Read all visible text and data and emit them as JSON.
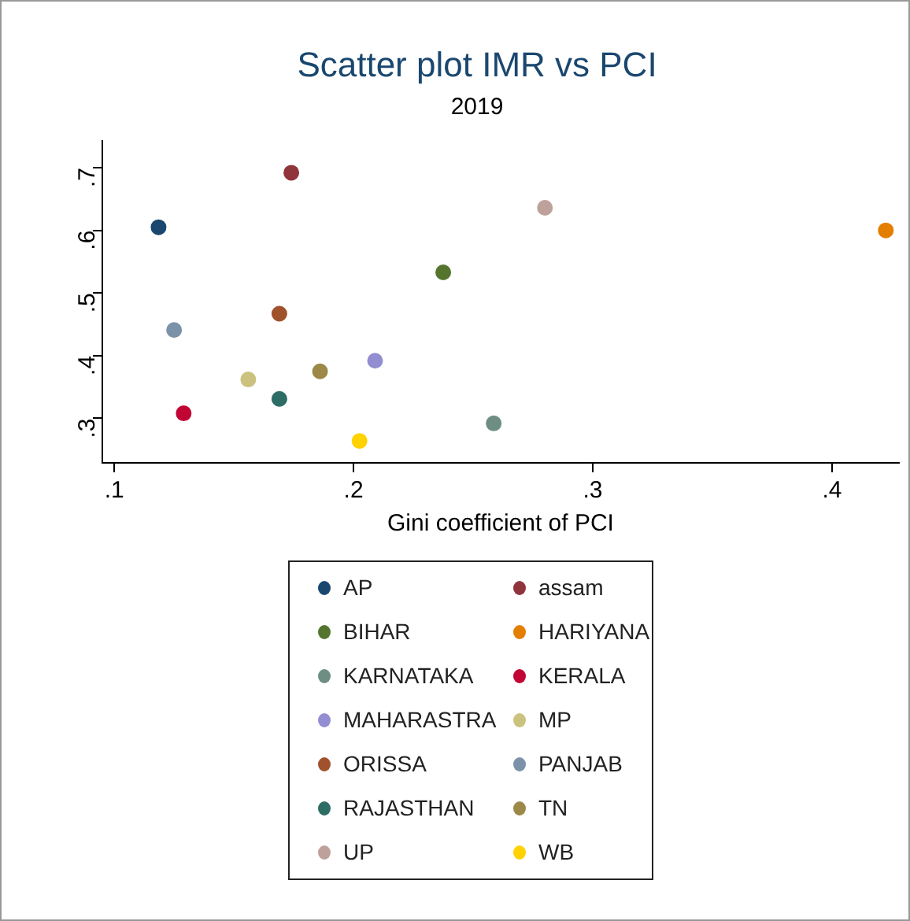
{
  "chart_data": {
    "type": "scatter",
    "title": "Scatter plot IMR vs PCI",
    "subtitle": "2019",
    "xlabel": "Gini coefficient of PCI",
    "xlim": [
      0.095,
      0.428
    ],
    "ylim": [
      0.229,
      0.743
    ],
    "xticks": [
      {
        "value": 0.1,
        "label": ".1"
      },
      {
        "value": 0.2,
        "label": ".2"
      },
      {
        "value": 0.3,
        "label": ".3"
      },
      {
        "value": 0.4,
        "label": ".4"
      }
    ],
    "yticks": [
      {
        "value": 0.3,
        "label": ".3"
      },
      {
        "value": 0.4,
        "label": ".4"
      },
      {
        "value": 0.5,
        "label": ".5"
      },
      {
        "value": 0.6,
        "label": ".6"
      },
      {
        "value": 0.7,
        "label": ".7"
      }
    ],
    "grid": false,
    "legend": "bottom",
    "marker": "circle",
    "series": [
      {
        "name": "AP",
        "color": "#1a476f",
        "x": [
          0.1185
        ],
        "values": [
          0.605
        ]
      },
      {
        "name": "assam",
        "color": "#90353b",
        "x": [
          0.174
        ],
        "values": [
          0.692
        ]
      },
      {
        "name": "BIHAR",
        "color": "#55752f",
        "x": [
          0.2375
        ],
        "values": [
          0.533
        ]
      },
      {
        "name": "HARIYANA",
        "color": "#e37e00",
        "x": [
          0.4225
        ],
        "values": [
          0.6
        ]
      },
      {
        "name": "KARNATAKA",
        "color": "#6e8e84",
        "x": [
          0.2586
        ],
        "values": [
          0.292
        ]
      },
      {
        "name": "KERALA",
        "color": "#c10534",
        "x": [
          0.129
        ],
        "values": [
          0.308
        ]
      },
      {
        "name": "MAHARASTRA",
        "color": "#938dd2",
        "x": [
          0.209
        ],
        "values": [
          0.392
        ]
      },
      {
        "name": "MP",
        "color": "#cac27e",
        "x": [
          0.156
        ],
        "values": [
          0.362
        ]
      },
      {
        "name": "ORISSA",
        "color": "#a0522d",
        "x": [
          0.169
        ],
        "values": [
          0.467
        ]
      },
      {
        "name": "PANJAB",
        "color": "#7b92a8",
        "x": [
          0.125
        ],
        "values": [
          0.441
        ]
      },
      {
        "name": "RAJASTHAN",
        "color": "#2d6d66",
        "x": [
          0.169
        ],
        "values": [
          0.331
        ]
      },
      {
        "name": "TN",
        "color": "#9c8847",
        "x": [
          0.186
        ],
        "values": [
          0.375
        ]
      },
      {
        "name": "UP",
        "color": "#bfa19c",
        "x": [
          0.28
        ],
        "values": [
          0.636
        ]
      },
      {
        "name": "WB",
        "color": "#ffd200",
        "x": [
          0.2025
        ],
        "values": [
          0.264
        ]
      }
    ]
  }
}
